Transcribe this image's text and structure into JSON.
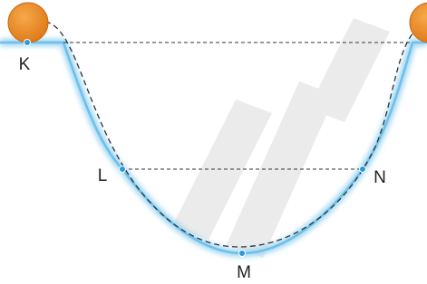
{
  "points": {
    "K": "K",
    "L": "L",
    "M": "M",
    "N": "N"
  }
}
